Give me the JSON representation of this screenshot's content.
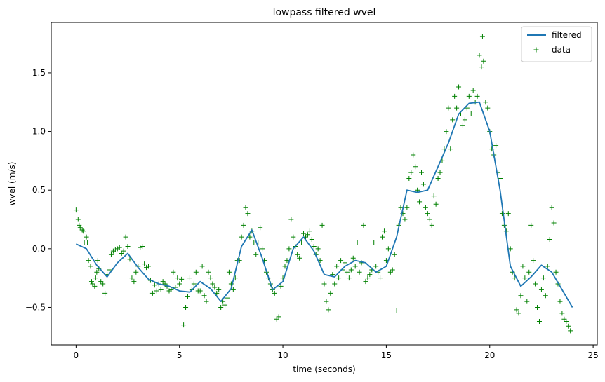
{
  "chart_data": {
    "type": "line+scatter",
    "title": "lowpass filtered wvel",
    "xlabel": "time (seconds)",
    "ylabel": "wvel (m/s)",
    "xlim": [
      -1.2,
      25.2
    ],
    "ylim": [
      -0.82,
      1.93
    ],
    "x_ticks": [
      0,
      5,
      10,
      15,
      20,
      25
    ],
    "y_ticks": [
      -0.5,
      0.0,
      0.5,
      1.0,
      1.5
    ],
    "x_tick_labels": [
      "0",
      "5",
      "10",
      "15",
      "20",
      "25"
    ],
    "y_tick_labels": [
      "−0.5",
      "0.0",
      "0.5",
      "1.0",
      "1.5"
    ],
    "grid": false,
    "legend_position": "top-right",
    "series": [
      {
        "name": "filtered",
        "kind": "line",
        "color": "#1f77b4",
        "x": [
          0,
          0.5,
          1.0,
          1.5,
          2.0,
          2.5,
          3.0,
          3.5,
          4.0,
          4.5,
          5.0,
          5.5,
          6.0,
          6.5,
          7.0,
          7.5,
          8.0,
          8.5,
          9.0,
          9.5,
          10.0,
          10.5,
          11.0,
          11.5,
          12.0,
          12.5,
          13.0,
          13.5,
          14.0,
          14.5,
          15.0,
          15.5,
          16.0,
          16.5,
          17.0,
          17.5,
          18.0,
          18.5,
          19.0,
          19.5,
          20.0,
          20.5,
          21.0,
          21.5,
          22.0,
          22.5,
          23.0,
          23.5,
          24.0
        ],
        "y": [
          0.04,
          0.0,
          -0.14,
          -0.24,
          -0.12,
          -0.04,
          -0.16,
          -0.26,
          -0.3,
          -0.32,
          -0.36,
          -0.37,
          -0.28,
          -0.34,
          -0.45,
          -0.34,
          0.02,
          0.16,
          -0.08,
          -0.35,
          -0.28,
          0.0,
          0.1,
          -0.02,
          -0.22,
          -0.24,
          -0.15,
          -0.1,
          -0.12,
          -0.2,
          -0.15,
          0.1,
          0.5,
          0.48,
          0.5,
          0.7,
          0.9,
          1.15,
          1.24,
          1.25,
          1.0,
          0.5,
          -0.15,
          -0.32,
          -0.24,
          -0.14,
          -0.2,
          -0.35,
          -0.5
        ]
      },
      {
        "name": "data",
        "kind": "scatter",
        "marker": "+",
        "color": "#008000",
        "points": [
          [
            0.0,
            0.33
          ],
          [
            0.1,
            0.25
          ],
          [
            0.15,
            0.2
          ],
          [
            0.2,
            0.18
          ],
          [
            0.3,
            0.16
          ],
          [
            0.35,
            0.15
          ],
          [
            0.4,
            0.05
          ],
          [
            0.5,
            0.1
          ],
          [
            0.55,
            0.05
          ],
          [
            0.6,
            -0.1
          ],
          [
            0.7,
            -0.15
          ],
          [
            0.75,
            -0.28
          ],
          [
            0.8,
            -0.3
          ],
          [
            0.9,
            -0.32
          ],
          [
            0.95,
            -0.25
          ],
          [
            1.0,
            -0.2
          ],
          [
            1.05,
            -0.1
          ],
          [
            1.1,
            -0.17
          ],
          [
            1.2,
            -0.28
          ],
          [
            1.3,
            -0.3
          ],
          [
            1.4,
            -0.38
          ],
          [
            1.5,
            -0.22
          ],
          [
            1.6,
            -0.18
          ],
          [
            1.7,
            -0.05
          ],
          [
            1.8,
            -0.02
          ],
          [
            1.9,
            -0.01
          ],
          [
            2.0,
            0.0
          ],
          [
            2.1,
            0.01
          ],
          [
            2.2,
            -0.04
          ],
          [
            2.3,
            -0.02
          ],
          [
            2.4,
            0.1
          ],
          [
            2.5,
            0.02
          ],
          [
            2.6,
            -0.09
          ],
          [
            2.7,
            -0.25
          ],
          [
            2.8,
            -0.28
          ],
          [
            2.9,
            -0.2
          ],
          [
            3.0,
            -0.15
          ],
          [
            3.1,
            0.01
          ],
          [
            3.2,
            0.02
          ],
          [
            3.3,
            -0.13
          ],
          [
            3.4,
            -0.16
          ],
          [
            3.5,
            -0.15
          ],
          [
            3.6,
            -0.27
          ],
          [
            3.7,
            -0.38
          ],
          [
            3.8,
            -0.31
          ],
          [
            3.9,
            -0.36
          ],
          [
            4.0,
            -0.3
          ],
          [
            4.1,
            -0.35
          ],
          [
            4.2,
            -0.28
          ],
          [
            4.3,
            -0.3
          ],
          [
            4.4,
            -0.32
          ],
          [
            4.5,
            -0.36
          ],
          [
            4.6,
            -0.35
          ],
          [
            4.7,
            -0.2
          ],
          [
            4.8,
            -0.33
          ],
          [
            4.9,
            -0.25
          ],
          [
            5.0,
            -0.3
          ],
          [
            5.1,
            -0.26
          ],
          [
            5.2,
            -0.65
          ],
          [
            5.3,
            -0.5
          ],
          [
            5.4,
            -0.41
          ],
          [
            5.5,
            -0.25
          ],
          [
            5.6,
            -0.35
          ],
          [
            5.7,
            -0.3
          ],
          [
            5.8,
            -0.2
          ],
          [
            5.9,
            -0.36
          ],
          [
            6.0,
            -0.36
          ],
          [
            6.1,
            -0.15
          ],
          [
            6.2,
            -0.4
          ],
          [
            6.3,
            -0.45
          ],
          [
            6.4,
            -0.2
          ],
          [
            6.5,
            -0.25
          ],
          [
            6.6,
            -0.3
          ],
          [
            6.7,
            -0.33
          ],
          [
            6.8,
            -0.38
          ],
          [
            6.9,
            -0.35
          ],
          [
            7.0,
            -0.5
          ],
          [
            7.1,
            -0.45
          ],
          [
            7.2,
            -0.48
          ],
          [
            7.3,
            -0.42
          ],
          [
            7.4,
            -0.2
          ],
          [
            7.5,
            -0.3
          ],
          [
            7.6,
            -0.35
          ],
          [
            7.7,
            -0.25
          ],
          [
            7.8,
            -0.1
          ],
          [
            7.9,
            -0.1
          ],
          [
            8.0,
            0.1
          ],
          [
            8.1,
            0.2
          ],
          [
            8.2,
            0.35
          ],
          [
            8.3,
            0.3
          ],
          [
            8.4,
            0.1
          ],
          [
            8.5,
            0.15
          ],
          [
            8.6,
            0.05
          ],
          [
            8.7,
            -0.05
          ],
          [
            8.8,
            0.05
          ],
          [
            8.9,
            0.18
          ],
          [
            9.0,
            0.0
          ],
          [
            9.1,
            -0.1
          ],
          [
            9.2,
            -0.2
          ],
          [
            9.3,
            -0.25
          ],
          [
            9.4,
            -0.3
          ],
          [
            9.5,
            -0.35
          ],
          [
            9.6,
            -0.38
          ],
          [
            9.7,
            -0.6
          ],
          [
            9.8,
            -0.58
          ],
          [
            9.9,
            -0.32
          ],
          [
            10.0,
            -0.25
          ],
          [
            10.1,
            -0.15
          ],
          [
            10.2,
            -0.1
          ],
          [
            10.3,
            0.0
          ],
          [
            10.4,
            0.25
          ],
          [
            10.5,
            0.1
          ],
          [
            10.6,
            0.02
          ],
          [
            10.7,
            -0.05
          ],
          [
            10.8,
            -0.08
          ],
          [
            10.9,
            0.05
          ],
          [
            11.0,
            0.13
          ],
          [
            11.1,
            0.1
          ],
          [
            11.2,
            0.12
          ],
          [
            11.3,
            0.15
          ],
          [
            11.4,
            0.08
          ],
          [
            11.5,
            0.02
          ],
          [
            11.6,
            -0.05
          ],
          [
            11.7,
            0.0
          ],
          [
            11.8,
            -0.1
          ],
          [
            11.9,
            0.2
          ],
          [
            12.0,
            -0.3
          ],
          [
            12.1,
            -0.45
          ],
          [
            12.2,
            -0.52
          ],
          [
            12.3,
            -0.38
          ],
          [
            12.4,
            -0.22
          ],
          [
            12.5,
            -0.3
          ],
          [
            12.6,
            -0.15
          ],
          [
            12.7,
            -0.25
          ],
          [
            12.8,
            -0.1
          ],
          [
            12.9,
            -0.18
          ],
          [
            13.0,
            -0.12
          ],
          [
            13.1,
            -0.2
          ],
          [
            13.2,
            -0.25
          ],
          [
            13.3,
            -0.18
          ],
          [
            13.4,
            -0.08
          ],
          [
            13.5,
            -0.15
          ],
          [
            13.6,
            0.05
          ],
          [
            13.7,
            -0.2
          ],
          [
            13.8,
            -0.12
          ],
          [
            13.9,
            0.2
          ],
          [
            14.0,
            -0.28
          ],
          [
            14.1,
            -0.25
          ],
          [
            14.2,
            -0.22
          ],
          [
            14.3,
            -0.18
          ],
          [
            14.4,
            0.05
          ],
          [
            14.5,
            -0.15
          ],
          [
            14.6,
            -0.2
          ],
          [
            14.7,
            -0.25
          ],
          [
            14.8,
            0.1
          ],
          [
            14.9,
            0.15
          ],
          [
            15.0,
            -0.1
          ],
          [
            15.1,
            0.0
          ],
          [
            15.2,
            -0.2
          ],
          [
            15.3,
            -0.18
          ],
          [
            15.4,
            -0.05
          ],
          [
            15.5,
            -0.53
          ],
          [
            15.6,
            0.2
          ],
          [
            15.7,
            0.35
          ],
          [
            15.8,
            0.3
          ],
          [
            15.9,
            0.25
          ],
          [
            16.0,
            0.35
          ],
          [
            16.1,
            0.6
          ],
          [
            16.2,
            0.65
          ],
          [
            16.3,
            0.8
          ],
          [
            16.4,
            0.7
          ],
          [
            16.5,
            0.5
          ],
          [
            16.6,
            0.4
          ],
          [
            16.7,
            0.65
          ],
          [
            16.8,
            0.55
          ],
          [
            16.9,
            0.35
          ],
          [
            17.0,
            0.3
          ],
          [
            17.1,
            0.25
          ],
          [
            17.2,
            0.2
          ],
          [
            17.3,
            0.45
          ],
          [
            17.4,
            0.38
          ],
          [
            17.5,
            0.6
          ],
          [
            17.6,
            0.65
          ],
          [
            17.7,
            0.75
          ],
          [
            17.8,
            0.85
          ],
          [
            17.9,
            1.0
          ],
          [
            18.0,
            1.2
          ],
          [
            18.1,
            0.85
          ],
          [
            18.2,
            1.1
          ],
          [
            18.3,
            1.3
          ],
          [
            18.4,
            1.2
          ],
          [
            18.5,
            1.38
          ],
          [
            18.6,
            1.15
          ],
          [
            18.7,
            1.05
          ],
          [
            18.8,
            1.1
          ],
          [
            18.9,
            1.2
          ],
          [
            19.0,
            1.3
          ],
          [
            19.1,
            1.15
          ],
          [
            19.2,
            1.35
          ],
          [
            19.3,
            1.25
          ],
          [
            19.4,
            1.3
          ],
          [
            19.5,
            1.65
          ],
          [
            19.6,
            1.55
          ],
          [
            19.65,
            1.81
          ],
          [
            19.7,
            1.6
          ],
          [
            19.8,
            1.25
          ],
          [
            19.9,
            1.2
          ],
          [
            20.0,
            1.0
          ],
          [
            20.1,
            0.85
          ],
          [
            20.2,
            0.8
          ],
          [
            20.3,
            0.88
          ],
          [
            20.4,
            0.65
          ],
          [
            20.5,
            0.6
          ],
          [
            20.6,
            0.3
          ],
          [
            20.7,
            0.2
          ],
          [
            20.8,
            0.15
          ],
          [
            20.9,
            0.3
          ],
          [
            21.0,
            0.0
          ],
          [
            21.1,
            -0.2
          ],
          [
            21.2,
            -0.25
          ],
          [
            21.3,
            -0.52
          ],
          [
            21.4,
            -0.55
          ],
          [
            21.5,
            -0.4
          ],
          [
            21.6,
            -0.15
          ],
          [
            21.7,
            -0.25
          ],
          [
            21.8,
            -0.45
          ],
          [
            21.9,
            -0.2
          ],
          [
            22.0,
            0.2
          ],
          [
            22.1,
            -0.1
          ],
          [
            22.2,
            -0.3
          ],
          [
            22.3,
            -0.5
          ],
          [
            22.4,
            -0.62
          ],
          [
            22.5,
            -0.35
          ],
          [
            22.6,
            -0.25
          ],
          [
            22.7,
            -0.4
          ],
          [
            22.8,
            -0.15
          ],
          [
            22.9,
            0.08
          ],
          [
            23.0,
            0.35
          ],
          [
            23.1,
            0.22
          ],
          [
            23.2,
            -0.2
          ],
          [
            23.3,
            -0.3
          ],
          [
            23.4,
            -0.45
          ],
          [
            23.5,
            -0.55
          ],
          [
            23.6,
            -0.6
          ],
          [
            23.7,
            -0.62
          ],
          [
            23.8,
            -0.66
          ],
          [
            23.9,
            -0.7
          ]
        ]
      }
    ]
  }
}
